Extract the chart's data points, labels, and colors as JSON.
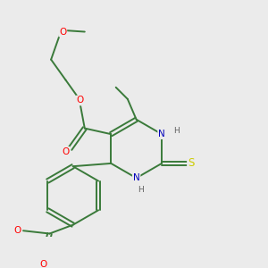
{
  "background_color": "#ebebeb",
  "bond_color": "#3a7a3a",
  "atom_colors": {
    "O": "#ff0000",
    "N": "#0000bb",
    "S": "#cccc00",
    "C": "#3a7a3a",
    "H": "#606060"
  },
  "line_width": 1.4,
  "font_size": 7.5
}
